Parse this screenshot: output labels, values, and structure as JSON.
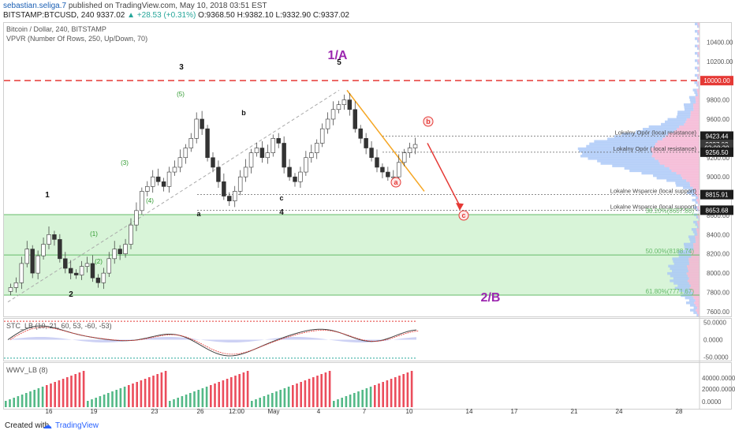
{
  "header": {
    "author": "sebastian.seliga.7",
    "published_text": "published on TradingView.com, May 10, 2018 03:51 EST",
    "symbol": "BITSTAMP:BTCUSD, 240",
    "price": "9337.02",
    "change": "+28.53 (+0.31%)",
    "ohlc_o": "O:9368.50",
    "ohlc_h": "H:9382.10",
    "ohlc_l": "L:9332.90",
    "ohlc_c": "C:9337.02",
    "chart_title": "Bitcoin / Dollar, 240, BITSTAMP",
    "indicator_title": "VPVR (Number Of Rows, 250, Up/Down, 70)"
  },
  "footer": {
    "created_with": "Created with",
    "brand": "TradingView"
  },
  "colors": {
    "up": "#53b987",
    "down": "#eb4d5c",
    "resistance_red": "#e53935",
    "fib_green_fill": "#c8f0c8",
    "wave_purple": "#9c27b0",
    "orange": "#f5a623",
    "vp_up": "#a9c7f7",
    "vp_down": "#f4b3d2"
  },
  "chart_data": [
    {
      "type": "candlestick",
      "name": "price",
      "ylim": [
        7550,
        10600
      ],
      "y_ticks": [
        7600,
        7800,
        8000,
        8200,
        8400,
        8600,
        8800,
        9000,
        9200,
        9400,
        9600,
        9800,
        10000,
        10200,
        10400
      ],
      "x_ticks": [
        "16",
        "19",
        "23",
        "26",
        "12:00",
        "May",
        "4",
        "7",
        "10",
        "14",
        "17",
        "21",
        "24",
        "28"
      ],
      "close": [
        7850,
        7900,
        8100,
        8250,
        8000,
        8180,
        8300,
        8400,
        8350,
        8150,
        8050,
        8000,
        7980,
        8070,
        8100,
        7950,
        7900,
        8000,
        8150,
        8250,
        8200,
        8300,
        8500,
        8650,
        8850,
        8900,
        9000,
        8950,
        8900,
        9050,
        9100,
        9200,
        9300,
        9400,
        9600,
        9500,
        9200,
        9100,
        8950,
        8800,
        8750,
        8850,
        9000,
        9100,
        9250,
        9300,
        9200,
        9250,
        9400,
        9350,
        9100,
        9000,
        8950,
        9050,
        9200,
        9250,
        9350,
        9500,
        9600,
        9700,
        9750,
        9800,
        9700,
        9500,
        9400,
        9300,
        9200,
        9100,
        9050,
        9000,
        9000,
        9150,
        9250,
        9300,
        9337.02
      ],
      "price_labels": [
        "9423.44",
        "9337.02",
        "03:08:20",
        "9256.50",
        "8815.91",
        "8653.68"
      ],
      "level_labels": [
        {
          "text": "Lokalny Opór (local resistance)",
          "price": 9423.44
        },
        {
          "text": "Lokalny Opór ( local resistance)",
          "price": 9256.5
        },
        {
          "text": "Lokalne Wsparcie (local support)",
          "price": 8815.91
        },
        {
          "text": "Lokalne Wsparcie (local support)",
          "price": 8653.68
        }
      ],
      "resistance_label": "10000.00",
      "resistance_price": 10000,
      "fib_levels": [
        {
          "text": "38.20%(8607.80)",
          "price": 8607.8
        },
        {
          "text": "50.00%(8188.74)",
          "price": 8188.74
        },
        {
          "text": "61.80%(7771.67)",
          "price": 7771.67
        }
      ],
      "wave_labels": [
        "1",
        "2",
        "3",
        "4",
        "5",
        "1/A",
        "2/B",
        "a",
        "b",
        "c",
        "(1)",
        "(2)",
        "(3)",
        "(4)",
        "(5)"
      ]
    },
    {
      "type": "line",
      "name": "oscillator",
      "title": "STC_LB (10, 21, 60, 53, -60, -53)",
      "ylim": [
        -60,
        60
      ],
      "y_ticks": [
        "50.0000",
        "0.0000",
        "-50.0000"
      ],
      "upper": 53,
      "lower": -53
    },
    {
      "type": "bar",
      "name": "volume",
      "title": "WWV_LB (8)",
      "y_ticks": [
        "40000.0000",
        "20000.0000",
        "0.0000"
      ]
    }
  ]
}
